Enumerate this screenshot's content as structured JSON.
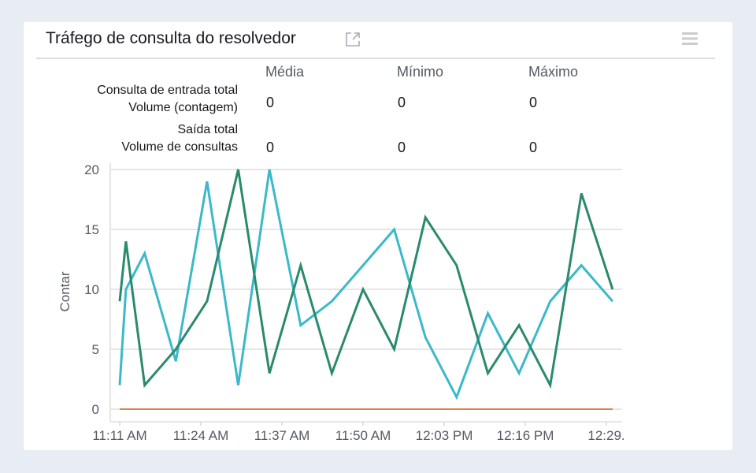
{
  "widget": {
    "title": "Tráfego de consulta do resolvedor",
    "external_link_icon": "external-link-icon",
    "menu_icon": "hamburger-menu-icon"
  },
  "summary": {
    "columns": [
      "Média",
      "Mínimo",
      "Máximo"
    ],
    "rows": [
      {
        "label_line1": "Consulta de entrada total",
        "label_line2": "Volume (contagem)",
        "values": [
          "0",
          "0",
          "0"
        ]
      },
      {
        "label_line1": "Saída total",
        "label_line2": "Volume de consultas",
        "values": [
          "0",
          "0",
          "0"
        ]
      }
    ]
  },
  "chart_data": {
    "type": "line",
    "ylabel": "Contar",
    "ylim": [
      0,
      20
    ],
    "yticks": [
      "0",
      "5",
      "10",
      "15",
      "20"
    ],
    "xticks": [
      "11:11 AM",
      "11:24 AM",
      "11:37 AM",
      "11:50 AM",
      "12:03 PM",
      "12:16 PM",
      "12:29."
    ],
    "grid": true,
    "x": [
      "11:11",
      "11:12",
      "11:15",
      "11:20",
      "11:25",
      "11:30",
      "11:35",
      "11:40",
      "11:45",
      "11:50",
      "11:55",
      "12:00",
      "12:05",
      "12:10",
      "12:15",
      "12:20",
      "12:25",
      "12:30"
    ],
    "series": [
      {
        "color": "#3bb9c8",
        "values": [
          2,
          10,
          13,
          4,
          19,
          2,
          20,
          7,
          9,
          12,
          15,
          6,
          1,
          8,
          3,
          9,
          12,
          9
        ]
      },
      {
        "color": "#2a8a6c",
        "values": [
          9,
          14,
          2,
          5,
          9,
          20,
          3,
          12,
          3,
          10,
          5,
          16,
          12,
          3,
          7,
          2,
          18,
          10
        ]
      },
      {
        "color": "#d9641e",
        "values": [
          0,
          0,
          0,
          0,
          0,
          0,
          0,
          0,
          0,
          0,
          0,
          0,
          0,
          0,
          0,
          0,
          0,
          0
        ]
      }
    ]
  }
}
